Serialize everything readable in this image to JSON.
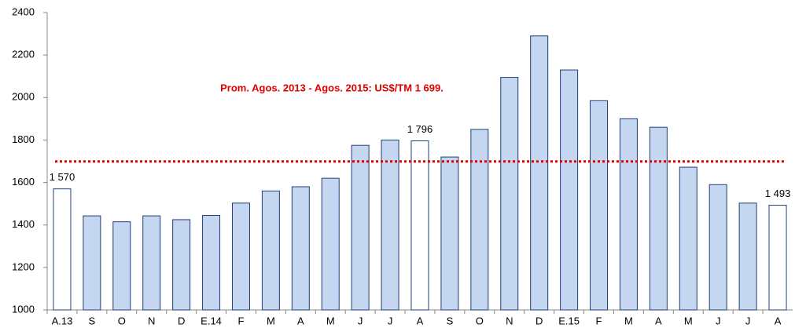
{
  "chart_data": {
    "type": "bar",
    "categories": [
      "A.13",
      "S",
      "O",
      "N",
      "D",
      "E.14",
      "F",
      "M",
      "A",
      "M",
      "J",
      "J",
      "A",
      "S",
      "O",
      "N",
      "D",
      "E.15",
      "F",
      "M",
      "A",
      "M",
      "J",
      "J",
      "A"
    ],
    "values": [
      1570,
      1443,
      1415,
      1443,
      1425,
      1445,
      1503,
      1560,
      1580,
      1620,
      1775,
      1800,
      1796,
      1720,
      1850,
      2095,
      2290,
      2130,
      1985,
      1900,
      1860,
      1672,
      1590,
      1503,
      1493
    ],
    "value_labels": [
      "1 570",
      null,
      null,
      null,
      null,
      null,
      null,
      null,
      null,
      null,
      null,
      null,
      "1 796",
      null,
      null,
      null,
      null,
      null,
      null,
      null,
      null,
      null,
      null,
      null,
      "1 493"
    ],
    "colors": [
      "#ffffff",
      "#c5d6f0",
      "#c5d6f0",
      "#c5d6f0",
      "#c5d6f0",
      "#c5d6f0",
      "#c5d6f0",
      "#c5d6f0",
      "#c5d6f0",
      "#c5d6f0",
      "#c5d6f0",
      "#c5d6f0",
      "#ffffff",
      "#c5d6f0",
      "#c5d6f0",
      "#c5d6f0",
      "#c5d6f0",
      "#c5d6f0",
      "#c5d6f0",
      "#c5d6f0",
      "#c5d6f0",
      "#c5d6f0",
      "#c5d6f0",
      "#c5d6f0",
      "#ffffff"
    ],
    "edge_color": "#1f3f7a",
    "ylim": [
      1000,
      2400
    ],
    "yticks": [
      1000,
      1200,
      1400,
      1600,
      1800,
      2000,
      2200,
      2400
    ],
    "grid": false,
    "reference_line": {
      "value": 1699,
      "label": "Prom. Agos. 2013 - Agos. 2015: US$/TM 1 699.",
      "color": "#e00000"
    }
  }
}
